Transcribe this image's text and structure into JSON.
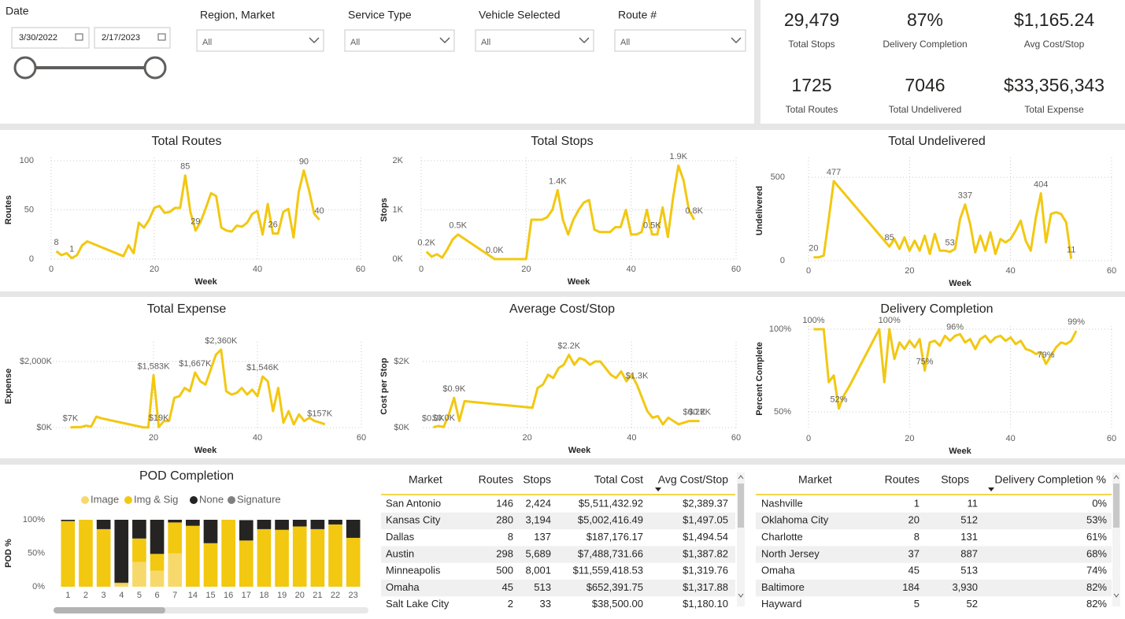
{
  "filters": {
    "date": {
      "label": "Date",
      "start": "3/30/2022",
      "end": "2/17/2023"
    },
    "dropdowns": [
      {
        "label": "Region, Market",
        "value": "All"
      },
      {
        "label": "Service Type",
        "value": "All"
      },
      {
        "label": "Vehicle Selected",
        "value": "All"
      },
      {
        "label": "Route #",
        "value": "All"
      }
    ]
  },
  "kpis": [
    {
      "value": "29,479",
      "label": "Total Stops"
    },
    {
      "value": "87%",
      "label": "Delivery Completion"
    },
    {
      "value": "$1,165.24",
      "label": "Avg Cost/Stop"
    },
    {
      "value": "1725",
      "label": "Total Routes"
    },
    {
      "value": "7046",
      "label": "Total Undelivered"
    },
    {
      "value": "$33,356,343",
      "label": "Total Expense"
    }
  ],
  "chart_data": [
    {
      "type": "line",
      "title": "Total Routes",
      "x_label": "Week",
      "y_label": "Routes",
      "color": "#f2c811",
      "grid": true,
      "x": [
        1,
        2,
        3,
        4,
        5,
        6,
        7,
        14,
        15,
        16,
        17,
        18,
        19,
        20,
        21,
        22,
        23,
        24,
        25,
        26,
        27,
        28,
        29,
        30,
        31,
        32,
        33,
        34,
        35,
        36,
        37,
        38,
        39,
        40,
        41,
        42,
        43,
        44,
        45,
        46,
        47,
        48,
        49,
        50,
        51,
        52
      ],
      "values": [
        8,
        4,
        6,
        1,
        4,
        14,
        18,
        3,
        14,
        6,
        37,
        32,
        40,
        52,
        54,
        47,
        48,
        52,
        52,
        85,
        48,
        29,
        38,
        52,
        67,
        64,
        32,
        29,
        28,
        34,
        33,
        37,
        46,
        49,
        25,
        56,
        26,
        26,
        48,
        51,
        22,
        68,
        90,
        70,
        46,
        40
      ],
      "value_labels": [
        "8",
        null,
        null,
        "1",
        null,
        null,
        null,
        null,
        null,
        null,
        null,
        null,
        null,
        null,
        null,
        null,
        null,
        null,
        null,
        "85",
        null,
        "29",
        null,
        null,
        null,
        null,
        null,
        null,
        null,
        null,
        null,
        null,
        null,
        null,
        null,
        null,
        "26",
        null,
        null,
        null,
        null,
        null,
        "90",
        null,
        null,
        "40"
      ],
      "xlim": [
        0,
        60
      ],
      "xticks": [
        0,
        20,
        40,
        60
      ],
      "ylim": [
        0,
        100
      ],
      "yticks": [
        0,
        50,
        100
      ]
    },
    {
      "type": "line",
      "title": "Total Stops",
      "x_label": "Week",
      "y_label": "Stops",
      "color": "#f2c811",
      "grid": true,
      "x": [
        1,
        2,
        3,
        4,
        5,
        6,
        7,
        14,
        15,
        16,
        17,
        18,
        19,
        20,
        21,
        22,
        23,
        24,
        25,
        26,
        27,
        28,
        29,
        30,
        31,
        32,
        33,
        34,
        35,
        36,
        37,
        38,
        39,
        40,
        41,
        42,
        43,
        44,
        45,
        46,
        47,
        48,
        49,
        50,
        51,
        52
      ],
      "values": [
        150,
        50,
        100,
        30,
        200,
        400,
        500,
        0,
        0,
        0,
        0,
        0,
        0,
        0,
        800,
        800,
        800,
        850,
        1000,
        1400,
        800,
        500,
        800,
        1000,
        1150,
        1200,
        600,
        550,
        550,
        550,
        650,
        650,
        1000,
        500,
        500,
        550,
        1000,
        500,
        500,
        1050,
        450,
        1250,
        1900,
        1600,
        1000,
        800
      ],
      "value_labels": [
        "0.2K",
        null,
        null,
        null,
        null,
        null,
        "0.5K",
        "0.0K",
        null,
        null,
        null,
        null,
        null,
        null,
        null,
        null,
        null,
        null,
        null,
        "1.4K",
        null,
        null,
        null,
        null,
        null,
        null,
        null,
        null,
        null,
        null,
        null,
        null,
        null,
        null,
        null,
        null,
        null,
        "0.5K",
        null,
        null,
        null,
        null,
        "1.9K",
        null,
        null,
        "0.8K"
      ],
      "xlim": [
        0,
        60
      ],
      "xticks": [
        0,
        20,
        40,
        60
      ],
      "ylim": [
        0,
        2000
      ],
      "yticks": [
        {
          "value": 0,
          "label": "0K"
        },
        {
          "value": 1000,
          "label": "1K"
        },
        {
          "value": 2000,
          "label": "2K"
        }
      ]
    },
    {
      "type": "line",
      "title": "Total Undelivered",
      "x_label": "Week",
      "y_label": "Undelivered",
      "color": "#f2c811",
      "grid": true,
      "x": [
        1,
        2,
        3,
        4,
        5,
        16,
        17,
        18,
        19,
        20,
        21,
        22,
        23,
        24,
        25,
        26,
        27,
        28,
        29,
        30,
        31,
        32,
        33,
        34,
        35,
        36,
        37,
        38,
        39,
        40,
        41,
        42,
        43,
        44,
        45,
        46,
        47,
        48,
        49,
        50,
        51,
        52
      ],
      "values": [
        20,
        20,
        30,
        250,
        477,
        85,
        130,
        70,
        140,
        60,
        120,
        60,
        150,
        40,
        160,
        60,
        60,
        53,
        70,
        250,
        337,
        220,
        50,
        150,
        60,
        170,
        40,
        130,
        110,
        130,
        180,
        240,
        120,
        60,
        260,
        404,
        110,
        280,
        290,
        280,
        230,
        11
      ],
      "value_labels": [
        "20",
        null,
        null,
        null,
        "477",
        "85",
        null,
        null,
        null,
        null,
        null,
        null,
        null,
        null,
        null,
        null,
        null,
        "53",
        null,
        null,
        "337",
        null,
        null,
        null,
        null,
        null,
        null,
        null,
        null,
        null,
        null,
        null,
        null,
        null,
        null,
        "404",
        null,
        null,
        null,
        null,
        null,
        "11"
      ],
      "xlim": [
        0,
        60
      ],
      "xticks": [
        0,
        20,
        40,
        60
      ],
      "ylim": [
        0,
        600
      ],
      "yticks": [
        0,
        500
      ]
    },
    {
      "type": "line",
      "title": "Total Expense",
      "x_label": "Week",
      "y_label": "Expense",
      "color": "#f2c811",
      "grid": true,
      "x": [
        4,
        5,
        6,
        7,
        8,
        9,
        10,
        18,
        19,
        20,
        21,
        22,
        23,
        24,
        25,
        26,
        27,
        28,
        29,
        30,
        31,
        32,
        33,
        34,
        35,
        36,
        37,
        38,
        39,
        40,
        41,
        42,
        43,
        44,
        45,
        46,
        47,
        48,
        49,
        50,
        51,
        52,
        53
      ],
      "values": [
        7000,
        20000,
        15000,
        60000,
        30000,
        330000,
        280000,
        10000,
        5000,
        1583000,
        19000,
        200000,
        200000,
        900000,
        950000,
        1200000,
        1100000,
        1667000,
        1400000,
        1300000,
        1750000,
        2200000,
        2360000,
        1100000,
        1000000,
        1050000,
        1200000,
        1000000,
        1150000,
        950000,
        1546000,
        1400000,
        500000,
        1200000,
        150000,
        500000,
        100000,
        400000,
        200000,
        300000,
        200000,
        157000,
        100000
      ],
      "value_labels": [
        "$7K",
        null,
        null,
        null,
        null,
        null,
        null,
        null,
        null,
        "$1,583K",
        "$19K",
        null,
        null,
        null,
        null,
        null,
        null,
        "$1,667K",
        null,
        null,
        null,
        null,
        "$2,360K",
        null,
        null,
        null,
        null,
        null,
        null,
        null,
        "$1,546K",
        null,
        null,
        null,
        null,
        null,
        null,
        null,
        null,
        null,
        null,
        "$157K",
        null
      ],
      "xlim": [
        0,
        60
      ],
      "xticks": [
        20,
        40,
        60
      ],
      "ylim": [
        0,
        2500000
      ],
      "yticks": [
        {
          "value": 0,
          "label": "$0K"
        },
        {
          "value": 2000000,
          "label": "$2,000K"
        }
      ]
    },
    {
      "type": "line",
      "title": "Average Cost/Stop",
      "x_label": "Week",
      "y_label": "Cost per Stop",
      "color": "#f2c811",
      "grid": true,
      "x": [
        2,
        3,
        4,
        5,
        6,
        7,
        8,
        21,
        22,
        23,
        24,
        25,
        26,
        27,
        28,
        29,
        30,
        31,
        32,
        33,
        34,
        35,
        36,
        37,
        38,
        39,
        40,
        41,
        42,
        43,
        44,
        45,
        46,
        47,
        48,
        49,
        50,
        51,
        52,
        53
      ],
      "values": [
        10,
        50,
        20,
        400,
        900,
        200,
        800,
        600,
        1200,
        1300,
        1600,
        1500,
        1800,
        1900,
        2200,
        1900,
        2100,
        2050,
        1900,
        2000,
        2000,
        1800,
        1600,
        1500,
        1700,
        1400,
        1600,
        1300,
        900,
        500,
        300,
        350,
        100,
        300,
        200,
        100,
        150,
        200,
        200,
        200
      ],
      "value_labels": [
        "$0.0K",
        null,
        "$0.0K",
        null,
        "$0.9K",
        null,
        null,
        null,
        null,
        null,
        null,
        null,
        null,
        null,
        "$2.2K",
        null,
        null,
        null,
        null,
        null,
        null,
        null,
        null,
        null,
        null,
        null,
        null,
        "$1.3K",
        null,
        null,
        null,
        null,
        null,
        null,
        null,
        null,
        null,
        null,
        "$0.2K",
        "$0.2K"
      ],
      "xlim": [
        0,
        60
      ],
      "xticks": [
        20,
        40,
        60
      ],
      "ylim": [
        0,
        2500
      ],
      "yticks": [
        {
          "value": 0,
          "label": "$0K"
        },
        {
          "value": 2000,
          "label": "$2K"
        }
      ]
    },
    {
      "type": "line",
      "title": "Delivery Completion",
      "x_label": "Week",
      "y_label": "Percent Complete",
      "color": "#f2c811",
      "grid": true,
      "x": [
        1,
        2,
        3,
        4,
        5,
        6,
        7,
        8,
        14,
        15,
        16,
        17,
        18,
        19,
        20,
        21,
        22,
        23,
        24,
        25,
        26,
        27,
        28,
        29,
        30,
        31,
        32,
        33,
        34,
        35,
        36,
        37,
        38,
        39,
        40,
        41,
        42,
        43,
        44,
        45,
        46,
        47,
        48,
        49,
        50,
        51,
        52,
        53
      ],
      "values": [
        100,
        100,
        100,
        68,
        72,
        52,
        60,
        65,
        100,
        68,
        100,
        82,
        92,
        88,
        93,
        89,
        94,
        75,
        92,
        93,
        90,
        96,
        93,
        96,
        97,
        92,
        94,
        88,
        94,
        96,
        92,
        95,
        96,
        93,
        95,
        91,
        93,
        88,
        87,
        85,
        86,
        79,
        84,
        89,
        92,
        91,
        93,
        99
      ],
      "value_labels": [
        "100%",
        null,
        null,
        null,
        null,
        "52%",
        null,
        null,
        null,
        null,
        "100%",
        null,
        null,
        null,
        null,
        null,
        null,
        "75%",
        null,
        null,
        null,
        null,
        null,
        "96%",
        null,
        null,
        null,
        null,
        null,
        null,
        null,
        null,
        null,
        null,
        null,
        null,
        null,
        null,
        null,
        null,
        null,
        "79%",
        null,
        null,
        null,
        null,
        null,
        "99%"
      ],
      "xlim": [
        0,
        60
      ],
      "xticks": [
        0,
        20,
        40,
        60
      ],
      "ylim": [
        40,
        100
      ],
      "yticks": [
        {
          "value": 50,
          "label": "50%"
        },
        {
          "value": 100,
          "label": "100%"
        }
      ]
    },
    {
      "type": "stacked_bar",
      "title": "POD Completion",
      "y_label": "POD %",
      "legend": "top",
      "grid": false,
      "categories": [
        "1",
        "2",
        "3",
        "4",
        "5",
        "6",
        "7",
        "14",
        "15",
        "16",
        "17",
        "18",
        "19",
        "20",
        "21",
        "22",
        "23"
      ],
      "series": [
        {
          "name": "Image",
          "color": "#f7d96b",
          "values": [
            0,
            0,
            0,
            4,
            37,
            24,
            50,
            0,
            0,
            0,
            0,
            0,
            0,
            0,
            0,
            0,
            0
          ]
        },
        {
          "name": "Img & Sig",
          "color": "#f2c811",
          "values": [
            98,
            100,
            86,
            2,
            35,
            25,
            46,
            91,
            65,
            100,
            69,
            86,
            85,
            90,
            86,
            93,
            73
          ]
        },
        {
          "name": "None",
          "color": "#252423",
          "values": [
            2,
            0,
            14,
            94,
            28,
            51,
            4,
            9,
            35,
            0,
            30,
            14,
            15,
            10,
            14,
            7,
            27
          ]
        },
        {
          "name": "Signature",
          "color": "#808080",
          "values": [
            0,
            0,
            0,
            0,
            0,
            0,
            0,
            0,
            0,
            0,
            1,
            0,
            0,
            0,
            0,
            0,
            0
          ]
        }
      ],
      "ylim": [
        0,
        100
      ],
      "yticks": [
        {
          "value": 0,
          "label": "0%"
        },
        {
          "value": 50,
          "label": "50%"
        },
        {
          "value": 100,
          "label": "100%"
        }
      ]
    }
  ],
  "tables": [
    {
      "columns": [
        "Market",
        "Routes",
        "Stops",
        "Total Cost",
        "Avg Cost/Stop"
      ],
      "rows": [
        [
          "San Antonio",
          "146",
          "2,424",
          "$5,511,432.92",
          "$2,389.37"
        ],
        [
          "Kansas City",
          "280",
          "3,194",
          "$5,002,416.49",
          "$1,497.05"
        ],
        [
          "Dallas",
          "8",
          "137",
          "$187,176.17",
          "$1,494.54"
        ],
        [
          "Austin",
          "298",
          "5,689",
          "$7,488,731.66",
          "$1,387.82"
        ],
        [
          "Minneapolis",
          "500",
          "8,001",
          "$11,559,418.53",
          "$1,319.76"
        ],
        [
          "Omaha",
          "45",
          "513",
          "$652,391.75",
          "$1,317.88"
        ],
        [
          "Salt Lake City",
          "2",
          "33",
          "$38,500.00",
          "$1,180.10"
        ]
      ]
    },
    {
      "columns": [
        "Market",
        "Routes",
        "Stops",
        "Delivery Completion %"
      ],
      "rows": [
        [
          "Nashville",
          "1",
          "11",
          "0%"
        ],
        [
          "Oklahoma City",
          "20",
          "512",
          "53%"
        ],
        [
          "Charlotte",
          "8",
          "131",
          "61%"
        ],
        [
          "North Jersey",
          "37",
          "887",
          "68%"
        ],
        [
          "Omaha",
          "45",
          "513",
          "74%"
        ],
        [
          "Baltimore",
          "184",
          "3,930",
          "82%"
        ],
        [
          "Hayward",
          "5",
          "52",
          "82%"
        ]
      ]
    }
  ]
}
